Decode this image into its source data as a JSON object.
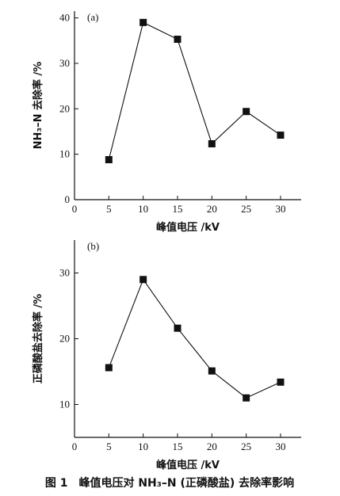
{
  "figure_caption": "图 1　峰值电压对 NH₃–N (正磷酸盐) 去除率影响",
  "chart_data": [
    {
      "type": "line",
      "panel_label": "(a)",
      "x": [
        5,
        10,
        15,
        20,
        25,
        30
      ],
      "series": [
        {
          "values": [
            8.8,
            39.0,
            35.3,
            12.3,
            19.4,
            14.2
          ]
        }
      ],
      "xlabel": "峰值电压 /kV",
      "ylabel": "NH₃–N 去除率 /%",
      "xlim": [
        0,
        33
      ],
      "ylim": [
        0,
        41.5
      ],
      "xticks": [
        0,
        5,
        10,
        15,
        20,
        25,
        30
      ],
      "yticks": [
        0,
        10,
        20,
        30,
        40
      ],
      "marker": "square",
      "grid": false
    },
    {
      "type": "line",
      "panel_label": "(b)",
      "x": [
        5,
        10,
        15,
        20,
        25,
        30
      ],
      "series": [
        {
          "values": [
            15.6,
            29.0,
            21.6,
            15.1,
            11.0,
            13.4
          ]
        }
      ],
      "xlabel": "峰值电压 /kV",
      "ylabel": "正磷酸盐去除率 /%",
      "xlim": [
        0,
        33
      ],
      "ylim": [
        5,
        35
      ],
      "xticks": [
        0,
        5,
        10,
        15,
        20,
        25,
        30
      ],
      "yticks": [
        10,
        20,
        30
      ],
      "marker": "square",
      "grid": false
    }
  ]
}
